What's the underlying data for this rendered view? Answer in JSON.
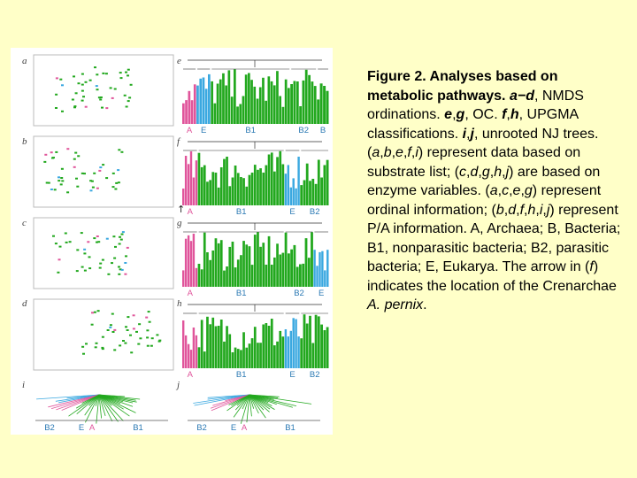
{
  "colors": {
    "page_background": "#ffffc8",
    "archaea": "#e0559b",
    "eukarya": "#3aa8e0",
    "bacteria": "#22a81e",
    "bacteria_dark": "#147812",
    "group_label": "#2c7ab4",
    "frame": "#bbbbbb"
  },
  "figure": {
    "panel_letters": {
      "a": "a",
      "b": "b",
      "c": "c",
      "d": "d",
      "e": "e",
      "f": "f",
      "g": "g",
      "h": "h",
      "i": "i",
      "j": "j"
    },
    "arrow_marker": "↑",
    "group_labels": {
      "A": "A",
      "E": "E",
      "B1": "B1",
      "B2": "B2",
      "B": "B"
    },
    "dendrogram_orders": {
      "e": [
        "A",
        "E",
        "B1",
        "B2",
        "B"
      ],
      "f": [
        "A",
        "B1",
        "E",
        "B2"
      ],
      "g": [
        "A",
        "B1",
        "B2",
        "E"
      ],
      "h": [
        "A",
        "B1",
        "E",
        "B2"
      ]
    },
    "tree_orders": {
      "i": [
        "B2",
        "E",
        "A",
        "B1"
      ],
      "j": [
        "B2",
        "E",
        "A",
        "B1"
      ]
    }
  },
  "caption": {
    "title": "Figure 2. Analyses based on metabolic pathways.",
    "parts": [
      {
        "t": "a−d",
        "s": "bi"
      },
      {
        "t": ", NMDS ordinations. ",
        "s": ""
      },
      {
        "t": "e",
        "s": "bi"
      },
      {
        "t": ",",
        "s": ""
      },
      {
        "t": "g",
        "s": "bi"
      },
      {
        "t": ", OC. ",
        "s": ""
      },
      {
        "t": "f",
        "s": "bi"
      },
      {
        "t": ",",
        "s": ""
      },
      {
        "t": "h",
        "s": "bi"
      },
      {
        "t": ", UPGMA classifications. ",
        "s": ""
      },
      {
        "t": "i",
        "s": "bi"
      },
      {
        "t": ",",
        "s": ""
      },
      {
        "t": "j",
        "s": "bi"
      },
      {
        "t": ", unrooted NJ trees. (",
        "s": ""
      },
      {
        "t": "a",
        "s": "i"
      },
      {
        "t": ",",
        "s": ""
      },
      {
        "t": "b",
        "s": "i"
      },
      {
        "t": ",",
        "s": ""
      },
      {
        "t": "e",
        "s": "i"
      },
      {
        "t": ",",
        "s": ""
      },
      {
        "t": "f",
        "s": "i"
      },
      {
        "t": ",",
        "s": ""
      },
      {
        "t": "i",
        "s": "i"
      },
      {
        "t": ") represent data based on substrate list; (",
        "s": ""
      },
      {
        "t": "c",
        "s": "i"
      },
      {
        "t": ",",
        "s": ""
      },
      {
        "t": "d",
        "s": "i"
      },
      {
        "t": ",",
        "s": ""
      },
      {
        "t": "g",
        "s": "i"
      },
      {
        "t": ",",
        "s": ""
      },
      {
        "t": "h",
        "s": "i"
      },
      {
        "t": ",",
        "s": ""
      },
      {
        "t": "j",
        "s": "i"
      },
      {
        "t": ") are based on enzyme variables. (",
        "s": ""
      },
      {
        "t": "a",
        "s": "i"
      },
      {
        "t": ",",
        "s": ""
      },
      {
        "t": "c",
        "s": "i"
      },
      {
        "t": ",",
        "s": ""
      },
      {
        "t": "e",
        "s": "i"
      },
      {
        "t": ",",
        "s": ""
      },
      {
        "t": "g",
        "s": "i"
      },
      {
        "t": ") represent ordinal information; (",
        "s": ""
      },
      {
        "t": "b",
        "s": "i"
      },
      {
        "t": ",",
        "s": ""
      },
      {
        "t": "d",
        "s": "i"
      },
      {
        "t": ",",
        "s": ""
      },
      {
        "t": "f",
        "s": "i"
      },
      {
        "t": ",",
        "s": ""
      },
      {
        "t": "h",
        "s": "i"
      },
      {
        "t": ",",
        "s": ""
      },
      {
        "t": "i",
        "s": "i"
      },
      {
        "t": ",",
        "s": ""
      },
      {
        "t": "j",
        "s": "i"
      },
      {
        "t": ") represent P/A information. A, Archaea; B, Bacteria; B1, nonparasitic bacteria; B2, parasitic bacteria; E, Eukarya. The arrow in (",
        "s": ""
      },
      {
        "t": "f",
        "s": "i"
      },
      {
        "t": ") indicates the location of the Crenarchae ",
        "s": ""
      },
      {
        "t": "A. pernix",
        "s": "i"
      },
      {
        "t": ".",
        "s": ""
      }
    ]
  }
}
